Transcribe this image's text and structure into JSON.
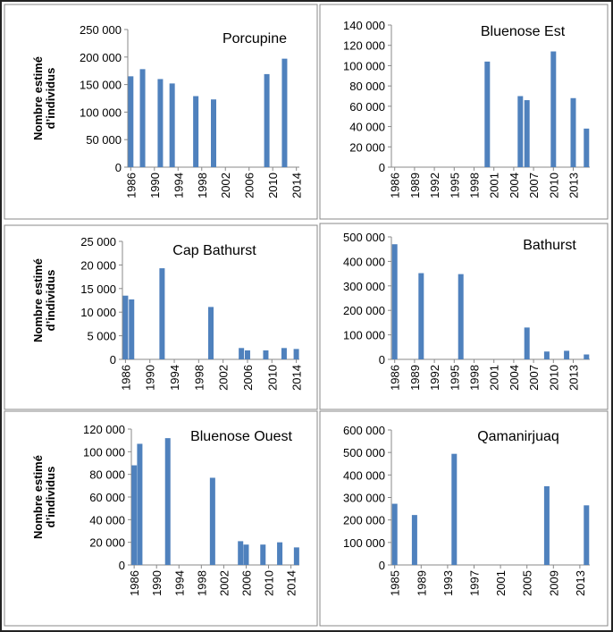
{
  "chart_data": [
    {
      "type": "bar",
      "title": "Porcupine",
      "ylabel": [
        "Nombre estimé",
        "d’individus"
      ],
      "x": [
        1986,
        1988,
        1991,
        1993,
        1997,
        2000,
        2009,
        2012
      ],
      "values": [
        165000,
        178000,
        160000,
        152000,
        129000,
        123000,
        169000,
        197000
      ],
      "color": "#4f81bd",
      "xlim": [
        1985.5,
        2014.5
      ],
      "xticks": [
        1986,
        1990,
        1994,
        1998,
        2002,
        2006,
        2010,
        2014
      ],
      "ylim": [
        0,
        250000
      ],
      "yticks": [
        0,
        {
          "value": 50000,
          "label": "50 000"
        },
        {
          "value": 100000,
          "label": "100 000"
        },
        {
          "value": 150000,
          "label": "150 000"
        },
        {
          "value": 200000,
          "label": "200 000"
        },
        {
          "value": 250000,
          "label": "250 000"
        }
      ]
    },
    {
      "type": "bar",
      "title": "Bluenose Est",
      "x": [
        2000,
        2005,
        2006,
        2010,
        2013,
        2015
      ],
      "values": [
        104000,
        70000,
        66000,
        114000,
        68000,
        38000
      ],
      "color": "#4f81bd",
      "xlim": [
        1985.5,
        2015.5
      ],
      "xticks": [
        1986,
        1989,
        1992,
        1995,
        1998,
        2001,
        2004,
        2007,
        2010,
        2013
      ],
      "ylim": [
        0,
        140000
      ],
      "yticks": [
        0,
        {
          "value": 20000,
          "label": "20 000"
        },
        {
          "value": 40000,
          "label": "40 000"
        },
        {
          "value": 60000,
          "label": "60 000"
        },
        {
          "value": 80000,
          "label": "80 000"
        },
        {
          "value": 100000,
          "label": "100 000"
        },
        {
          "value": 120000,
          "label": "120 000"
        },
        {
          "value": 140000,
          "label": "140 000"
        }
      ]
    },
    {
      "type": "bar",
      "title": "Cap Bathurst",
      "ylabel": [
        "Nombre estimé",
        "d’individus"
      ],
      "x": [
        1986,
        1987,
        1992,
        2000,
        2005,
        2006,
        2009,
        2012,
        2014
      ],
      "values": [
        13500,
        12700,
        19300,
        11100,
        2400,
        1900,
        1900,
        2400,
        2200
      ],
      "color": "#4f81bd",
      "xlim": [
        1985.5,
        2014.5
      ],
      "xticks": [
        1986,
        1990,
        1994,
        1998,
        2002,
        2006,
        2010,
        2014
      ],
      "ylim": [
        0,
        25000
      ],
      "yticks": [
        0,
        {
          "value": 5000,
          "label": "5 000"
        },
        {
          "value": 10000,
          "label": "10 000"
        },
        {
          "value": 15000,
          "label": "15 000"
        },
        {
          "value": 20000,
          "label": "20 000"
        },
        {
          "value": 25000,
          "label": "25 000"
        }
      ]
    },
    {
      "type": "bar",
      "title": "Bathurst",
      "x": [
        1986,
        1990,
        1996,
        2006,
        2009,
        2012,
        2015
      ],
      "values": [
        470000,
        352000,
        348000,
        130000,
        32000,
        35000,
        20000
      ],
      "color": "#4f81bd",
      "xlim": [
        1985.5,
        2015.5
      ],
      "xticks": [
        1986,
        1989,
        1992,
        1995,
        1998,
        2001,
        2004,
        2007,
        2010,
        2013
      ],
      "ylim": [
        0,
        500000
      ],
      "yticks": [
        0,
        {
          "value": 100000,
          "label": "100 000"
        },
        {
          "value": 200000,
          "label": "200 000"
        },
        {
          "value": 300000,
          "label": "300 000"
        },
        {
          "value": 400000,
          "label": "400 000"
        },
        {
          "value": 500000,
          "label": "500 000"
        }
      ]
    },
    {
      "type": "bar",
      "title": "Bluenose Ouest",
      "ylabel": [
        "Nombre estimé",
        "d’individus"
      ],
      "x": [
        1986,
        1987,
        1992,
        2000,
        2005,
        2006,
        2009,
        2012,
        2015
      ],
      "values": [
        88000,
        107000,
        112000,
        77000,
        21000,
        18000,
        18000,
        20000,
        15500
      ],
      "color": "#4f81bd",
      "xlim": [
        1985.5,
        2015.5
      ],
      "xticks": [
        1986,
        1990,
        1994,
        1998,
        2002,
        2006,
        2010,
        2014
      ],
      "ylim": [
        0,
        120000
      ],
      "yticks": [
        0,
        {
          "value": 20000,
          "label": "20 000"
        },
        {
          "value": 40000,
          "label": "40 000"
        },
        {
          "value": 60000,
          "label": "60 000"
        },
        {
          "value": 80000,
          "label": "80 000"
        },
        {
          "value": 100000,
          "label": "100 000"
        },
        {
          "value": 120000,
          "label": "120 000"
        }
      ]
    },
    {
      "type": "bar",
      "title": "Qamanirjuaq",
      "x": [
        1985,
        1988,
        1994,
        2008,
        2014
      ],
      "values": [
        272000,
        222000,
        494000,
        350000,
        265000
      ],
      "color": "#4f81bd",
      "xlim": [
        1984.5,
        2014.5
      ],
      "xticks": [
        1985,
        1989,
        1993,
        1997,
        2001,
        2005,
        2009,
        2013
      ],
      "ylim": [
        0,
        600000
      ],
      "yticks": [
        0,
        {
          "value": 100000,
          "label": "100 000"
        },
        {
          "value": 200000,
          "label": "200 000"
        },
        {
          "value": 300000,
          "label": "300 000"
        },
        {
          "value": 400000,
          "label": "400 000"
        },
        {
          "value": 500000,
          "label": "500 000"
        },
        {
          "value": 600000,
          "label": "600 000"
        }
      ]
    }
  ]
}
